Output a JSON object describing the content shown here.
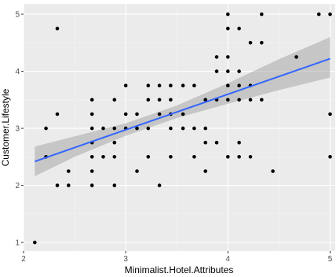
{
  "chart_data": {
    "type": "scatter",
    "title": "",
    "xlabel": "Minimalist.Hotel.Attributes",
    "ylabel": "Customer.Lifestyle",
    "xlim": [
      2.0,
      5.05
    ],
    "ylim": [
      0.85,
      5.18
    ],
    "x_ticks": [
      2,
      3,
      4,
      5
    ],
    "y_ticks": [
      1,
      2,
      3,
      4,
      5
    ],
    "x_tick_labels": [
      "2",
      "3",
      "4",
      "5"
    ],
    "y_tick_labels": [
      "1",
      "2",
      "3",
      "4",
      "5"
    ],
    "grid": true,
    "colors": {
      "panel": "#ebebeb",
      "grid_major": "#ffffff",
      "grid_minor": "#f3f3f3",
      "points": "#000000",
      "fit_line": "#3366ff",
      "ribbon": "#999999"
    },
    "points": [
      {
        "x": 2.11,
        "y": 1.0
      },
      {
        "x": 2.22,
        "y": 2.5
      },
      {
        "x": 2.22,
        "y": 3.0
      },
      {
        "x": 2.33,
        "y": 2.0
      },
      {
        "x": 2.33,
        "y": 3.25
      },
      {
        "x": 2.33,
        "y": 4.75
      },
      {
        "x": 2.44,
        "y": 2.0
      },
      {
        "x": 2.44,
        "y": 2.25
      },
      {
        "x": 2.67,
        "y": 2.0
      },
      {
        "x": 2.67,
        "y": 2.25
      },
      {
        "x": 2.67,
        "y": 2.5
      },
      {
        "x": 2.67,
        "y": 2.75
      },
      {
        "x": 2.67,
        "y": 3.0
      },
      {
        "x": 2.67,
        "y": 3.25
      },
      {
        "x": 2.67,
        "y": 3.5
      },
      {
        "x": 2.78,
        "y": 2.5
      },
      {
        "x": 2.78,
        "y": 3.0
      },
      {
        "x": 2.89,
        "y": 2.0
      },
      {
        "x": 2.89,
        "y": 2.5
      },
      {
        "x": 2.89,
        "y": 2.75
      },
      {
        "x": 2.89,
        "y": 3.0
      },
      {
        "x": 2.89,
        "y": 3.5
      },
      {
        "x": 3.0,
        "y": 3.0
      },
      {
        "x": 3.0,
        "y": 3.25
      },
      {
        "x": 3.0,
        "y": 3.75
      },
      {
        "x": 3.11,
        "y": 2.25
      },
      {
        "x": 3.11,
        "y": 3.0
      },
      {
        "x": 3.11,
        "y": 3.25
      },
      {
        "x": 3.22,
        "y": 2.5
      },
      {
        "x": 3.22,
        "y": 3.0
      },
      {
        "x": 3.22,
        "y": 3.5
      },
      {
        "x": 3.22,
        "y": 3.75
      },
      {
        "x": 3.33,
        "y": 2.0
      },
      {
        "x": 3.33,
        "y": 3.25
      },
      {
        "x": 3.33,
        "y": 3.5
      },
      {
        "x": 3.33,
        "y": 3.75
      },
      {
        "x": 3.44,
        "y": 2.5
      },
      {
        "x": 3.44,
        "y": 3.0
      },
      {
        "x": 3.44,
        "y": 3.25
      },
      {
        "x": 3.44,
        "y": 3.5
      },
      {
        "x": 3.44,
        "y": 3.75
      },
      {
        "x": 3.56,
        "y": 3.0
      },
      {
        "x": 3.56,
        "y": 3.25
      },
      {
        "x": 3.56,
        "y": 3.75
      },
      {
        "x": 3.67,
        "y": 2.5
      },
      {
        "x": 3.67,
        "y": 3.0
      },
      {
        "x": 3.67,
        "y": 3.75
      },
      {
        "x": 3.78,
        "y": 2.25
      },
      {
        "x": 3.78,
        "y": 2.75
      },
      {
        "x": 3.78,
        "y": 3.0
      },
      {
        "x": 3.78,
        "y": 3.5
      },
      {
        "x": 3.89,
        "y": 2.75
      },
      {
        "x": 3.89,
        "y": 3.5
      },
      {
        "x": 3.89,
        "y": 4.0
      },
      {
        "x": 3.89,
        "y": 4.25
      },
      {
        "x": 4.0,
        "y": 2.5
      },
      {
        "x": 4.0,
        "y": 3.5
      },
      {
        "x": 4.0,
        "y": 4.25
      },
      {
        "x": 4.11,
        "y": 3.5
      },
      {
        "x": 4.11,
        "y": 3.75
      },
      {
        "x": 4.11,
        "y": 4.0
      },
      {
        "x": 4.11,
        "y": 4.75
      },
      {
        "x": 4.22,
        "y": 3.75
      },
      {
        "x": 4.22,
        "y": 4.5
      },
      {
        "x": 4.33,
        "y": 3.5
      },
      {
        "x": 4.33,
        "y": 4.5
      },
      {
        "x": 4.33,
        "y": 5.0
      },
      {
        "x": 4.0,
        "y": 3.75
      },
      {
        "x": 4.0,
        "y": 4.0
      },
      {
        "x": 4.0,
        "y": 4.75
      },
      {
        "x": 4.0,
        "y": 5.0
      },
      {
        "x": 4.11,
        "y": 2.5
      },
      {
        "x": 4.11,
        "y": 2.75
      },
      {
        "x": 4.22,
        "y": 2.5
      },
      {
        "x": 4.22,
        "y": 3.5
      },
      {
        "x": 4.44,
        "y": 2.25
      },
      {
        "x": 4.67,
        "y": 4.25
      },
      {
        "x": 4.89,
        "y": 5.0
      },
      {
        "x": 5.0,
        "y": 2.5
      },
      {
        "x": 5.0,
        "y": 3.25
      },
      {
        "x": 5.0,
        "y": 5.0
      }
    ],
    "fit_line": {
      "method": "lm",
      "x": [
        2.11,
        5.0
      ],
      "y": [
        2.42,
        4.22
      ]
    },
    "ribbon": [
      {
        "x": 2.11,
        "lower": 2.16,
        "upper": 2.68
      },
      {
        "x": 2.5,
        "lower": 2.5,
        "upper": 2.86
      },
      {
        "x": 3.0,
        "lower": 2.87,
        "upper": 3.09
      },
      {
        "x": 3.5,
        "lower": 3.18,
        "upper": 3.4
      },
      {
        "x": 4.0,
        "lower": 3.43,
        "upper": 3.79
      },
      {
        "x": 4.5,
        "lower": 3.67,
        "upper": 4.21
      },
      {
        "x": 5.0,
        "lower": 3.89,
        "upper": 4.6
      }
    ]
  }
}
